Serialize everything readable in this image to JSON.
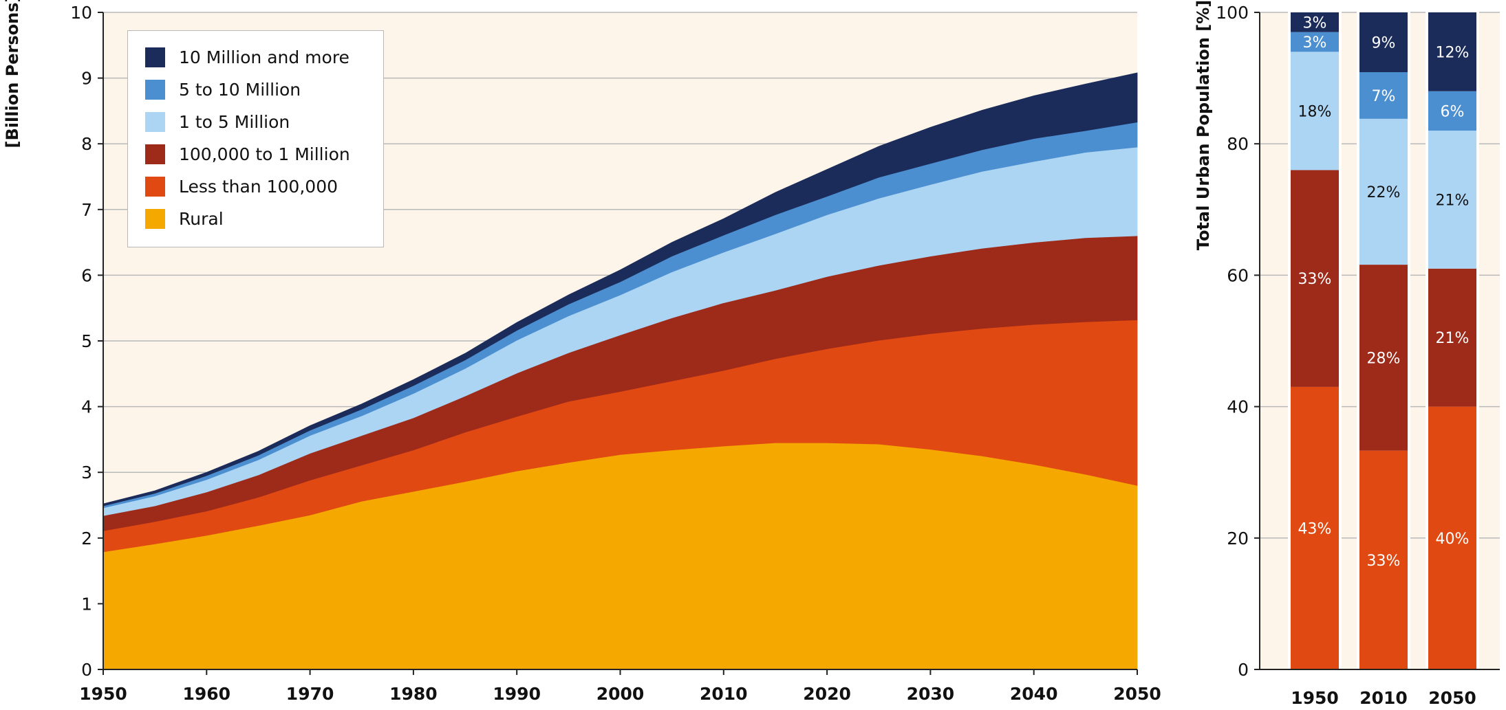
{
  "chart_data": [
    {
      "type": "area",
      "stacked": true,
      "ylabel": "[Billion Persons]",
      "xlim": [
        1950,
        2050
      ],
      "ylim": [
        0,
        10
      ],
      "x": [
        1950,
        1955,
        1960,
        1965,
        1970,
        1975,
        1980,
        1985,
        1990,
        1995,
        2000,
        2005,
        2010,
        2015,
        2020,
        2025,
        2030,
        2035,
        2040,
        2045,
        2050
      ],
      "x_ticks": [
        "1950",
        "1960",
        "1970",
        "1980",
        "1990",
        "2000",
        "2010",
        "2020",
        "2030",
        "2040",
        "2050"
      ],
      "y_ticks": [
        "0",
        "1",
        "2",
        "3",
        "4",
        "5",
        "6",
        "7",
        "8",
        "9",
        "10"
      ],
      "grid": true,
      "legend_position": "top-left",
      "series": [
        {
          "name": "Rural",
          "color": "#f5a800",
          "values": [
            1.79,
            1.91,
            2.04,
            2.19,
            2.35,
            2.56,
            2.71,
            2.86,
            3.02,
            3.15,
            3.27,
            3.34,
            3.4,
            3.45,
            3.45,
            3.43,
            3.35,
            3.25,
            3.12,
            2.97,
            2.8
          ]
        },
        {
          "name": "Less than 100,000",
          "color": "#e04a12",
          "values": [
            0.32,
            0.34,
            0.37,
            0.43,
            0.53,
            0.55,
            0.63,
            0.75,
            0.83,
            0.93,
            0.96,
            1.05,
            1.15,
            1.28,
            1.43,
            1.58,
            1.76,
            1.94,
            2.13,
            2.32,
            2.52
          ]
        },
        {
          "name": "100,000 to 1 Million",
          "color": "#9e2a1a",
          "values": [
            0.23,
            0.24,
            0.29,
            0.34,
            0.41,
            0.45,
            0.49,
            0.55,
            0.66,
            0.74,
            0.86,
            0.96,
            1.03,
            1.04,
            1.1,
            1.14,
            1.18,
            1.22,
            1.25,
            1.28,
            1.28
          ]
        },
        {
          "name": "1 to 5 Million",
          "color": "#acd5f4",
          "values": [
            0.12,
            0.15,
            0.19,
            0.23,
            0.27,
            0.3,
            0.37,
            0.42,
            0.5,
            0.56,
            0.61,
            0.7,
            0.77,
            0.86,
            0.94,
            1.02,
            1.09,
            1.17,
            1.23,
            1.3,
            1.35
          ]
        },
        {
          "name": "5 to 10 Million",
          "color": "#4c8fd1",
          "values": [
            0.03,
            0.04,
            0.06,
            0.07,
            0.08,
            0.1,
            0.12,
            0.13,
            0.15,
            0.18,
            0.2,
            0.24,
            0.26,
            0.29,
            0.28,
            0.32,
            0.32,
            0.33,
            0.35,
            0.33,
            0.38
          ]
        },
        {
          "name": "10 Million and more",
          "color": "#1c2c5a",
          "values": [
            0.03,
            0.04,
            0.05,
            0.06,
            0.07,
            0.08,
            0.09,
            0.1,
            0.12,
            0.14,
            0.18,
            0.21,
            0.25,
            0.34,
            0.41,
            0.47,
            0.55,
            0.6,
            0.65,
            0.71,
            0.75
          ]
        }
      ]
    },
    {
      "type": "bar",
      "stacked": true,
      "ylabel": "Total Urban Population [%]",
      "ylim": [
        0,
        100
      ],
      "categories": [
        "1950",
        "2010",
        "2050"
      ],
      "y_ticks": [
        "0",
        "20",
        "40",
        "60",
        "80",
        "100"
      ],
      "grid": true,
      "series": [
        {
          "name": "Less than 100,000",
          "color": "#e04a12",
          "values": [
            43,
            33.3,
            40
          ],
          "labels": [
            "43%",
            "33%",
            "40%"
          ]
        },
        {
          "name": "100,000 to 1 Million",
          "color": "#9e2a1a",
          "values": [
            33,
            28.3,
            21
          ],
          "labels": [
            "33%",
            "28%",
            "21%"
          ]
        },
        {
          "name": "1 to 5 Million",
          "color": "#acd5f4",
          "values": [
            18,
            22.2,
            21
          ],
          "labels": [
            "18%",
            "22%",
            "21%"
          ]
        },
        {
          "name": "5 to 10 Million",
          "color": "#4c8fd1",
          "values": [
            3,
            7.1,
            6
          ],
          "labels": [
            "3%",
            "7%",
            "6%"
          ]
        },
        {
          "name": "10 Million and more",
          "color": "#1c2c5a",
          "values": [
            3,
            9.1,
            12
          ],
          "labels": [
            "3%",
            "9%",
            "12%"
          ]
        }
      ]
    }
  ],
  "legend": {
    "items": [
      {
        "label": "10 Million and more",
        "color": "#1c2c5a"
      },
      {
        "label": "5 to 10 Million",
        "color": "#4c8fd1"
      },
      {
        "label": "1 to 5 Million",
        "color": "#acd5f4"
      },
      {
        "label": "100,000 to 1 Million",
        "color": "#9e2a1a"
      },
      {
        "label": "Less than 100,000",
        "color": "#e04a12"
      },
      {
        "label": "Rural",
        "color": "#f5a800"
      }
    ]
  },
  "colors": {
    "plot_background": "#fdf5ea",
    "grid": "#b9b9b9"
  }
}
